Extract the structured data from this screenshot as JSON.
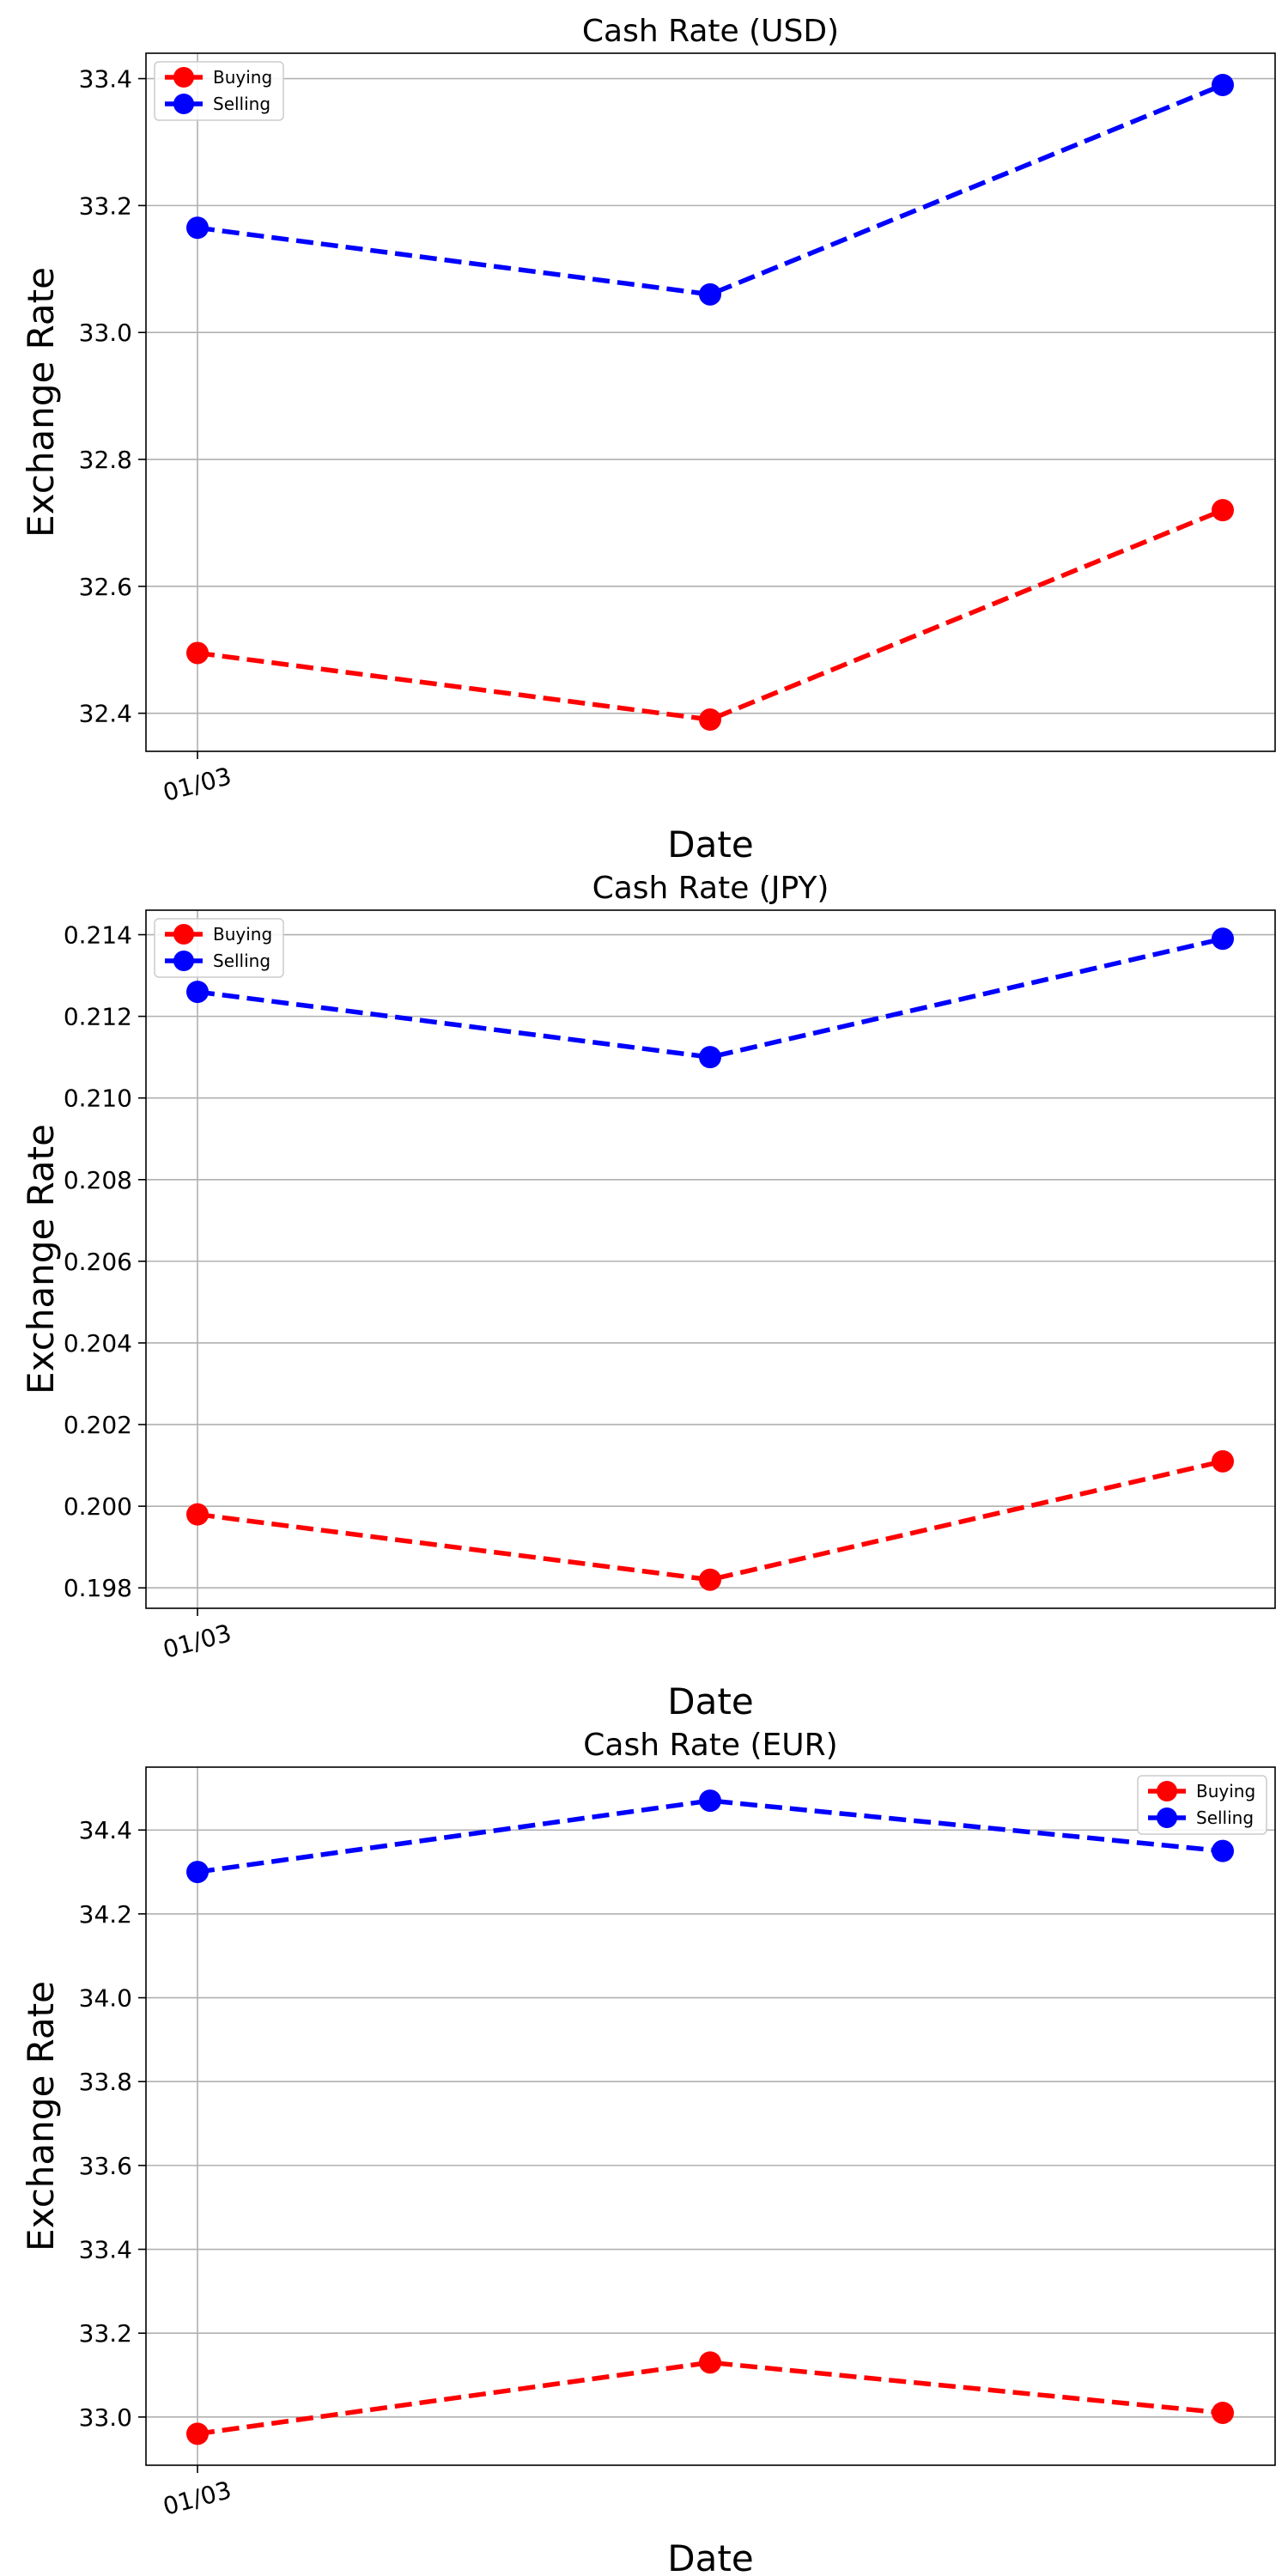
{
  "chart_data": [
    {
      "type": "line",
      "title": "Cash Rate (USD)",
      "xlabel": "Date",
      "ylabel": "Exchange Rate",
      "x_tick_labels": [
        "01/03"
      ],
      "y_ticks": [
        "32.4",
        "32.6",
        "32.8",
        "33.0",
        "33.2",
        "33.4"
      ],
      "ylim": [
        32.34,
        33.44
      ],
      "grid": true,
      "legend_position": "top-left",
      "series": [
        {
          "name": "Buying",
          "color": "#ff0000",
          "values": [
            32.495,
            32.39,
            32.72
          ]
        },
        {
          "name": "Selling",
          "color": "#0000ff",
          "values": [
            33.165,
            33.06,
            33.39
          ]
        }
      ]
    },
    {
      "type": "line",
      "title": "Cash Rate (JPY)",
      "xlabel": "Date",
      "ylabel": "Exchange Rate",
      "x_tick_labels": [
        "01/03"
      ],
      "y_ticks": [
        "0.198",
        "0.200",
        "0.202",
        "0.204",
        "0.206",
        "0.208",
        "0.210",
        "0.212",
        "0.214"
      ],
      "ylim": [
        0.1975,
        0.2146
      ],
      "grid": true,
      "legend_position": "top-left",
      "series": [
        {
          "name": "Buying",
          "color": "#ff0000",
          "values": [
            0.1998,
            0.1982,
            0.2011
          ]
        },
        {
          "name": "Selling",
          "color": "#0000ff",
          "values": [
            0.2126,
            0.211,
            0.2139
          ]
        }
      ]
    },
    {
      "type": "line",
      "title": "Cash Rate (EUR)",
      "xlabel": "Date",
      "ylabel": "Exchange Rate",
      "x_tick_labels": [
        "01/03"
      ],
      "y_ticks": [
        "33.0",
        "33.2",
        "33.4",
        "33.6",
        "33.8",
        "34.0",
        "34.2",
        "34.4"
      ],
      "ylim": [
        32.885,
        34.55
      ],
      "grid": true,
      "legend_position": "top-right",
      "series": [
        {
          "name": "Buying",
          "color": "#ff0000",
          "values": [
            32.96,
            33.13,
            33.01
          ]
        },
        {
          "name": "Selling",
          "color": "#0000ff",
          "values": [
            34.3,
            34.47,
            34.35
          ]
        }
      ]
    }
  ]
}
